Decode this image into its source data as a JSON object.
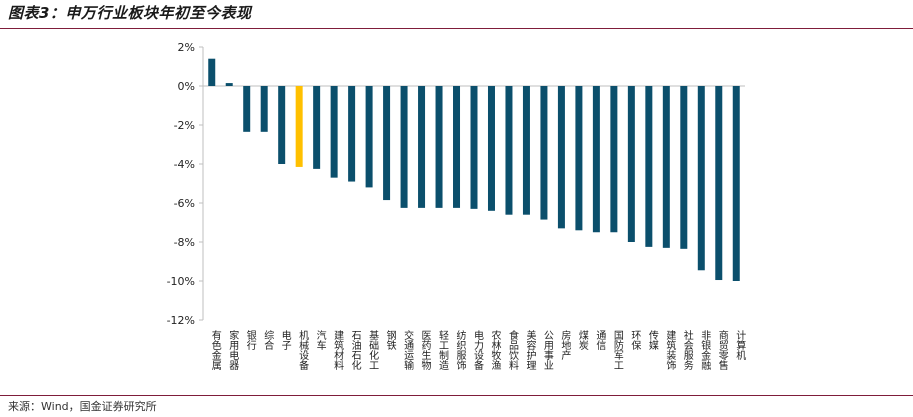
{
  "title": "图表3：申万行业板块年初至今表现",
  "source": "来源：Wind，国金证券研究所",
  "colors": {
    "bar": "#0b4f6c",
    "highlight": "#ffc000",
    "axis": "#bfbfbf"
  },
  "chart_data": {
    "type": "bar",
    "title": "",
    "xlabel": "",
    "ylabel": "",
    "ylim": [
      -12,
      2
    ],
    "yticks": [
      2,
      0,
      -2,
      -4,
      -6,
      -8,
      -10,
      -12
    ],
    "ytick_labels": [
      "2%",
      "0%",
      "-2%",
      "-4%",
      "-6%",
      "-8%",
      "-10%",
      "-12%"
    ],
    "highlight_category": "机械设备",
    "categories": [
      "有色金属",
      "家用电器",
      "银行",
      "综合",
      "电子",
      "机械设备",
      "汽车",
      "建筑材料",
      "石油石化",
      "基础化工",
      "钢铁",
      "交通运输",
      "医药生物",
      "轻工制造",
      "纺织服饰",
      "电力设备",
      "农林牧渔",
      "食品饮料",
      "美容护理",
      "公用事业",
      "房地产",
      "煤炭",
      "通信",
      "国防军工",
      "环保",
      "传媒",
      "建筑装饰",
      "社会服务",
      "非银金融",
      "商贸零售",
      "计算机"
    ],
    "values": [
      1.4,
      0.15,
      -2.35,
      -2.35,
      -4.0,
      -4.15,
      -4.25,
      -4.7,
      -4.9,
      -5.2,
      -5.85,
      -6.25,
      -6.25,
      -6.25,
      -6.25,
      -6.3,
      -6.4,
      -6.6,
      -6.6,
      -6.85,
      -7.3,
      -7.4,
      -7.5,
      -7.5,
      -8.0,
      -8.25,
      -8.3,
      -8.35,
      -9.45,
      -9.95,
      -10.0
    ]
  }
}
